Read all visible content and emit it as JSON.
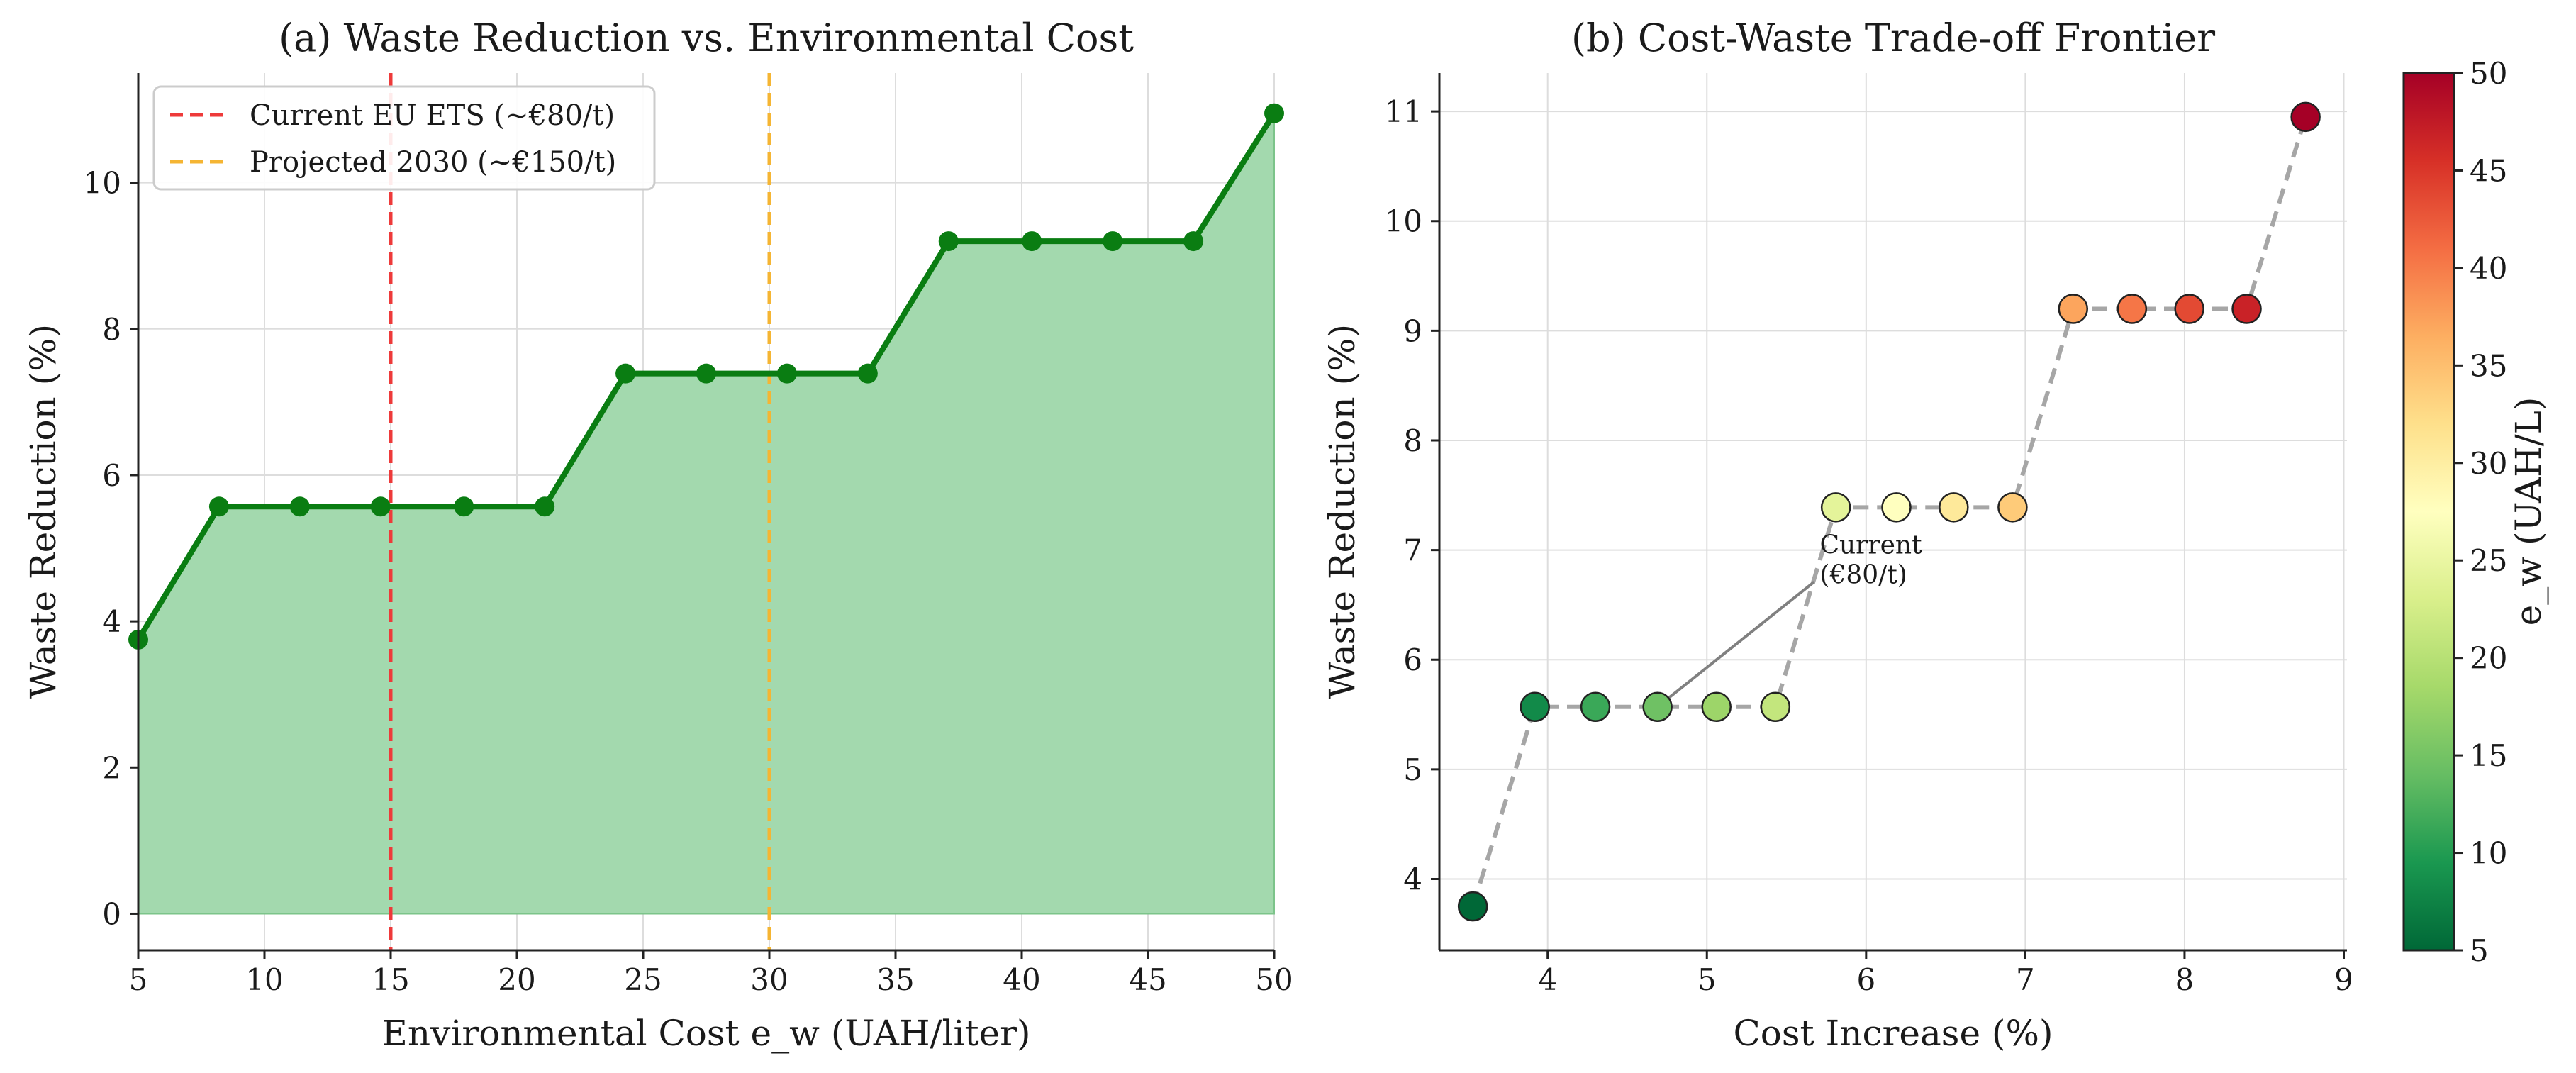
{
  "chart_data": [
    {
      "type": "area",
      "title": "(a) Waste Reduction vs. Environmental Cost",
      "xlabel": "Environmental Cost e_w (UAH/liter)",
      "ylabel": "Waste Reduction (%)",
      "xlim": [
        5,
        50
      ],
      "ylim": [
        -0.5,
        11.5
      ],
      "xticks": [
        5,
        10,
        15,
        20,
        25,
        30,
        35,
        40,
        45,
        50
      ],
      "yticks": [
        0,
        2,
        4,
        6,
        8,
        10
      ],
      "grid": true,
      "legend_position": "top-left",
      "colors": {
        "line": "#0a7d12",
        "fill": "#a3d9ae",
        "current": "#ee3a3a",
        "projected": "#f5b533"
      },
      "series": [
        {
          "x": [
            5.0,
            8.2,
            11.4,
            14.6,
            17.9,
            21.1,
            24.3,
            27.5,
            30.7,
            33.9,
            37.1,
            40.4,
            43.6,
            46.8,
            50.0
          ],
          "values": [
            3.75,
            5.57,
            5.57,
            5.57,
            5.57,
            5.57,
            7.39,
            7.39,
            7.39,
            7.39,
            9.2,
            9.2,
            9.2,
            9.2,
            10.95
          ]
        }
      ],
      "reference_lines": [
        {
          "x": 15,
          "label": "Current EU ETS (~€80/t)",
          "color": "#ee3a3a"
        },
        {
          "x": 30,
          "label": "Projected 2030 (~€150/t)",
          "color": "#f5b533"
        }
      ]
    },
    {
      "type": "scatter",
      "title": "(b) Cost-Waste Trade-off Frontier",
      "xlabel": "Cost Increase (%)",
      "ylabel": "Waste Reduction (%)",
      "xlim": [
        3.32,
        9.02
      ],
      "ylim": [
        3.35,
        11.35
      ],
      "xticks": [
        4,
        5,
        6,
        7,
        8,
        9
      ],
      "yticks": [
        4,
        5,
        6,
        7,
        8,
        9,
        10,
        11
      ],
      "grid": true,
      "colorbar": {
        "label": "e_w (UAH/L)",
        "range": [
          5,
          50
        ],
        "ticks": [
          5,
          10,
          15,
          20,
          25,
          30,
          35,
          40,
          45,
          50
        ],
        "colormap": [
          "#006837",
          "#1a9850",
          "#66bd63",
          "#a6d96a",
          "#d9ef8b",
          "#ffffbf",
          "#fee08b",
          "#fdae61",
          "#f46d43",
          "#d73027",
          "#a50026"
        ]
      },
      "points": [
        {
          "x": 3.53,
          "y": 3.75,
          "c": 5.0
        },
        {
          "x": 3.92,
          "y": 5.57,
          "c": 8.2
        },
        {
          "x": 4.3,
          "y": 5.57,
          "c": 11.4
        },
        {
          "x": 4.69,
          "y": 5.57,
          "c": 14.6
        },
        {
          "x": 5.06,
          "y": 5.57,
          "c": 17.9
        },
        {
          "x": 5.43,
          "y": 5.57,
          "c": 21.1
        },
        {
          "x": 5.81,
          "y": 7.39,
          "c": 24.3
        },
        {
          "x": 6.19,
          "y": 7.39,
          "c": 27.5
        },
        {
          "x": 6.55,
          "y": 7.39,
          "c": 30.7
        },
        {
          "x": 6.92,
          "y": 7.39,
          "c": 33.9
        },
        {
          "x": 7.3,
          "y": 9.2,
          "c": 37.1
        },
        {
          "x": 7.67,
          "y": 9.2,
          "c": 40.4
        },
        {
          "x": 8.03,
          "y": 9.2,
          "c": 43.6
        },
        {
          "x": 8.39,
          "y": 9.2,
          "c": 46.8
        },
        {
          "x": 8.76,
          "y": 10.95,
          "c": 50.0
        }
      ],
      "annotation": {
        "text_line1": "Current",
        "text_line2": "(€80/t)",
        "text_x": 5.7,
        "text_y": 6.8,
        "target_x": 4.69,
        "target_y": 5.57
      }
    }
  ]
}
